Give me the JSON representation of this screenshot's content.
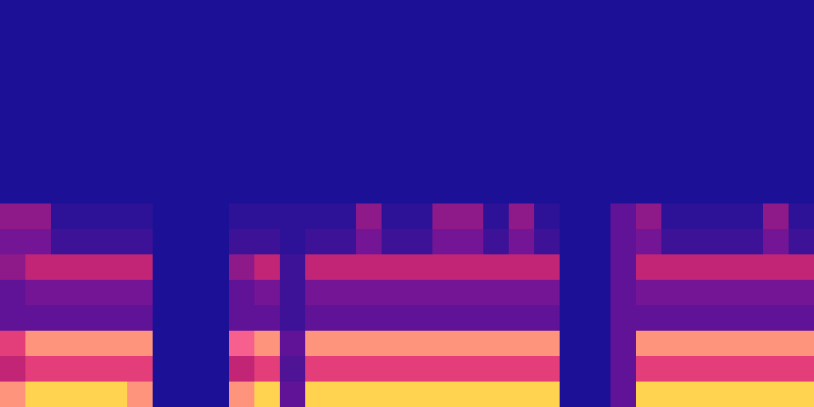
{
  "chart_data": {
    "type": "heatmap",
    "tick_labels": false,
    "cells": [
      [
        1,
        1,
        1,
        1,
        1,
        1,
        1,
        1,
        1,
        1,
        1,
        1,
        1,
        1,
        1,
        1,
        1,
        1,
        1,
        1,
        1,
        1,
        1,
        1,
        1,
        1,
        1,
        1,
        1,
        1,
        1,
        1
      ],
      [
        1,
        1,
        1,
        1,
        1,
        1,
        1,
        1,
        1,
        1,
        1,
        1,
        1,
        1,
        1,
        1,
        1,
        1,
        1,
        1,
        1,
        1,
        1,
        1,
        1,
        1,
        1,
        1,
        1,
        1,
        1,
        1
      ],
      [
        1,
        1,
        1,
        1,
        1,
        1,
        1,
        1,
        1,
        1,
        1,
        1,
        1,
        1,
        1,
        1,
        1,
        1,
        1,
        1,
        1,
        1,
        1,
        1,
        1,
        1,
        1,
        1,
        1,
        1,
        1,
        1
      ],
      [
        1,
        1,
        1,
        1,
        1,
        1,
        1,
        1,
        1,
        1,
        1,
        1,
        1,
        1,
        1,
        1,
        1,
        1,
        1,
        1,
        1,
        1,
        1,
        1,
        1,
        1,
        1,
        1,
        1,
        1,
        1,
        1
      ],
      [
        1,
        1,
        1,
        1,
        1,
        1,
        1,
        1,
        1,
        1,
        1,
        1,
        1,
        1,
        1,
        1,
        1,
        1,
        1,
        1,
        1,
        1,
        1,
        1,
        1,
        1,
        1,
        1,
        1,
        1,
        1,
        1
      ],
      [
        1,
        1,
        1,
        1,
        1,
        1,
        1,
        1,
        1,
        1,
        1,
        1,
        1,
        1,
        1,
        1,
        1,
        1,
        1,
        1,
        1,
        1,
        1,
        1,
        1,
        1,
        1,
        1,
        1,
        1,
        1,
        1
      ],
      [
        1,
        1,
        1,
        1,
        1,
        1,
        1,
        1,
        1,
        1,
        1,
        1,
        1,
        1,
        1,
        1,
        1,
        1,
        1,
        1,
        1,
        1,
        1,
        1,
        1,
        1,
        1,
        1,
        1,
        1,
        1,
        1
      ],
      [
        1,
        1,
        1,
        1,
        1,
        1,
        1,
        1,
        1,
        1,
        1,
        1,
        1,
        1,
        1,
        1,
        1,
        1,
        1,
        1,
        1,
        1,
        1,
        1,
        1,
        1,
        1,
        1,
        1,
        1,
        1,
        1
      ],
      [
        4,
        4,
        1.5,
        1.5,
        1.5,
        1.5,
        1,
        1,
        1,
        1.5,
        1.5,
        1.5,
        1.5,
        1.5,
        4,
        1.5,
        1.5,
        4,
        4,
        1.5,
        4,
        1.5,
        1,
        1,
        3,
        4,
        1.5,
        1.5,
        1.5,
        1.5,
        4,
        1.5
      ],
      [
        3.5,
        3.5,
        2,
        2,
        2,
        2,
        1,
        1,
        1,
        2,
        2,
        1.5,
        2,
        2,
        3.5,
        2,
        2,
        3.5,
        3.5,
        2,
        3.5,
        2,
        1,
        1,
        3,
        3.5,
        2,
        2,
        2,
        2,
        3.5,
        2
      ],
      [
        4,
        5,
        5,
        5,
        5,
        5,
        1,
        1,
        1,
        4,
        5,
        2,
        5,
        5,
        5,
        5,
        5,
        5,
        5,
        5,
        5,
        5,
        1,
        1,
        3,
        5,
        5,
        5,
        5,
        5,
        5,
        5
      ],
      [
        3,
        3.5,
        3.5,
        3.5,
        3.5,
        3.5,
        1,
        1,
        1,
        3,
        3.5,
        2,
        3.5,
        3.5,
        3.5,
        3.5,
        3.5,
        3.5,
        3.5,
        3.5,
        3.5,
        3.5,
        1,
        1,
        3,
        3.5,
        3.5,
        3.5,
        3.5,
        3.5,
        3.5,
        3.5
      ],
      [
        3,
        3,
        3,
        3,
        3,
        3,
        1,
        1,
        1,
        3,
        3,
        2,
        3,
        3,
        3,
        3,
        3,
        3,
        3,
        3,
        3,
        3,
        1,
        1,
        3,
        3,
        3,
        3,
        3,
        3,
        3,
        3
      ],
      [
        6,
        8,
        8,
        8,
        8,
        8,
        1,
        1,
        1,
        7,
        8,
        3,
        8,
        8,
        8,
        8,
        8,
        8,
        8,
        8,
        8,
        8,
        1,
        1,
        3,
        8,
        8,
        8,
        8,
        8,
        8,
        8
      ],
      [
        5,
        6,
        6,
        6,
        6,
        6,
        1,
        1,
        1,
        5,
        6,
        2.5,
        6,
        6,
        6,
        6,
        6,
        6,
        6,
        6,
        6,
        6,
        1,
        1,
        3,
        6,
        6,
        6,
        6,
        6,
        6,
        6
      ],
      [
        8,
        9,
        9,
        9,
        9,
        8,
        1,
        1,
        1,
        8,
        9,
        3,
        9,
        9,
        9,
        9,
        9,
        9,
        9,
        9,
        9,
        9,
        1,
        1,
        3,
        9,
        9,
        9,
        9,
        9,
        9,
        9
      ]
    ]
  }
}
